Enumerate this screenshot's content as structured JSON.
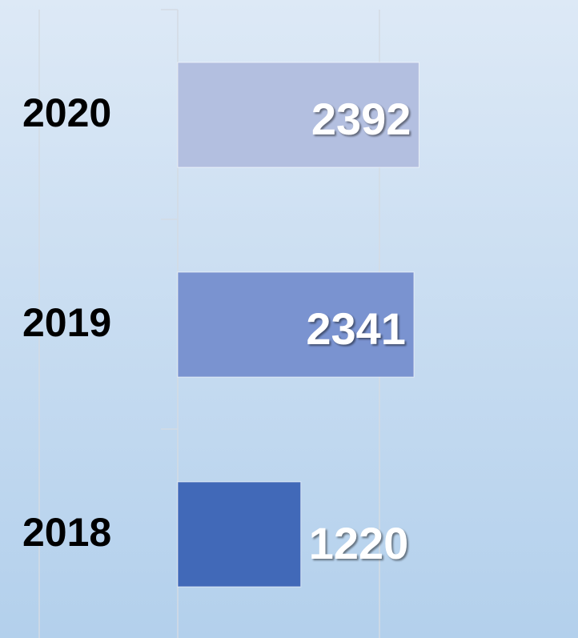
{
  "chart_data": {
    "type": "barh",
    "categories": [
      "2020",
      "2019",
      "2018"
    ],
    "values": [
      2392,
      2341,
      1220
    ],
    "colors": [
      "#b3bfe0",
      "#7a93d0",
      "#4169b8"
    ],
    "xlim": [
      0,
      4000
    ],
    "xticks": [
      0,
      2000
    ],
    "grid": true
  }
}
